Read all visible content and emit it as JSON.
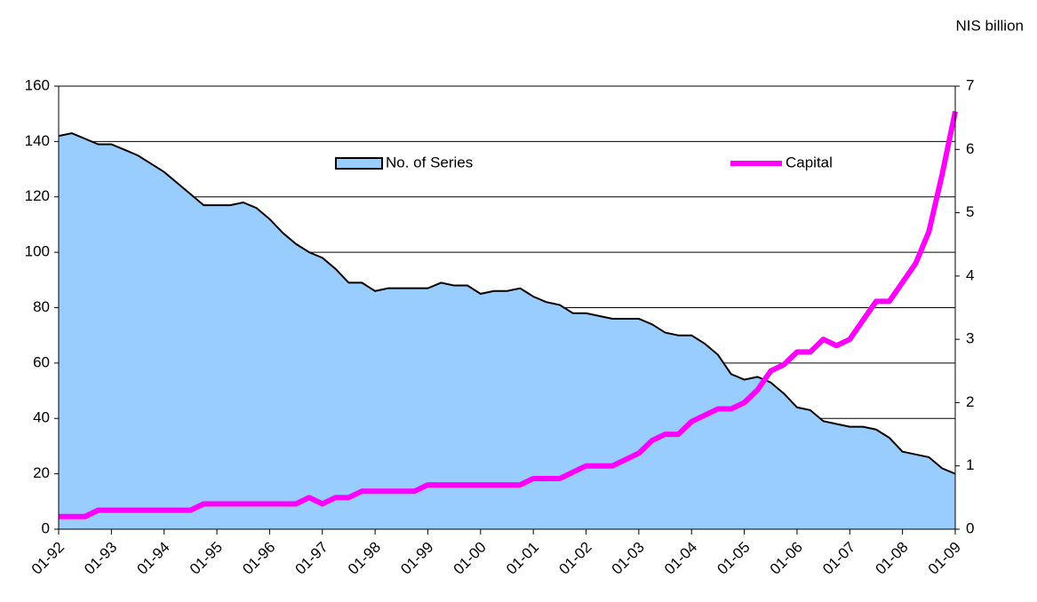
{
  "chart_data": {
    "type": "area-line",
    "y2_label": "NIS billion",
    "x": [
      "01-92",
      null,
      null,
      null,
      "01-93",
      null,
      null,
      null,
      "01-94",
      null,
      null,
      null,
      "01-95",
      null,
      null,
      null,
      "01-96",
      null,
      null,
      null,
      "01-97",
      null,
      null,
      null,
      "01-98",
      null,
      null,
      null,
      "01-99",
      null,
      null,
      null,
      "01-00",
      null,
      null,
      null,
      "01-01",
      null,
      null,
      null,
      "01-02",
      null,
      null,
      null,
      "01-03",
      null,
      null,
      null,
      "01-04",
      null,
      null,
      null,
      "01-05",
      null,
      null,
      null,
      "01-06",
      null,
      null,
      null,
      "01-07",
      null,
      null,
      null,
      "01-08",
      null,
      null,
      null,
      "01-09"
    ],
    "series": [
      {
        "name": "No. of Series",
        "type": "area",
        "color": "#99ccff",
        "values": [
          142,
          143,
          141,
          139,
          139,
          137,
          135,
          132,
          129,
          125,
          121,
          117,
          117,
          117,
          118,
          116,
          112,
          107,
          103,
          100,
          98,
          94,
          89,
          89,
          86,
          87,
          87,
          87,
          87,
          89,
          88,
          88,
          85,
          86,
          86,
          87,
          84,
          82,
          81,
          78,
          78,
          77,
          76,
          76,
          76,
          74,
          71,
          70,
          70,
          67,
          63,
          56,
          54,
          55,
          53,
          49,
          44,
          43,
          39,
          38,
          37,
          37,
          36,
          33,
          28,
          27,
          26,
          22,
          20
        ]
      },
      {
        "name": "Capital",
        "type": "line",
        "axis": "y2",
        "color": "#ff00ff",
        "values": [
          0.2,
          0.2,
          0.2,
          0.3,
          0.3,
          0.3,
          0.3,
          0.3,
          0.3,
          0.3,
          0.3,
          0.4,
          0.4,
          0.4,
          0.4,
          0.4,
          0.4,
          0.4,
          0.4,
          0.5,
          0.4,
          0.5,
          0.5,
          0.6,
          0.6,
          0.6,
          0.6,
          0.6,
          0.7,
          0.7,
          0.7,
          0.7,
          0.7,
          0.7,
          0.7,
          0.7,
          0.8,
          0.8,
          0.8,
          0.9,
          1.0,
          1.0,
          1.0,
          1.1,
          1.2,
          1.4,
          1.5,
          1.5,
          1.7,
          1.8,
          1.9,
          1.9,
          2.0,
          2.2,
          2.5,
          2.6,
          2.8,
          2.8,
          3.0,
          2.9,
          3.0,
          3.3,
          3.6,
          3.6,
          3.9,
          4.2,
          4.7,
          5.6,
          6.6
        ]
      }
    ],
    "ylim": [
      0,
      160
    ],
    "yticks": [
      0,
      20,
      40,
      60,
      80,
      100,
      120,
      140,
      160
    ],
    "y2lim": [
      0,
      7
    ],
    "y2ticks": [
      0,
      1,
      2,
      3,
      4,
      5,
      6,
      7
    ],
    "grid": true
  }
}
